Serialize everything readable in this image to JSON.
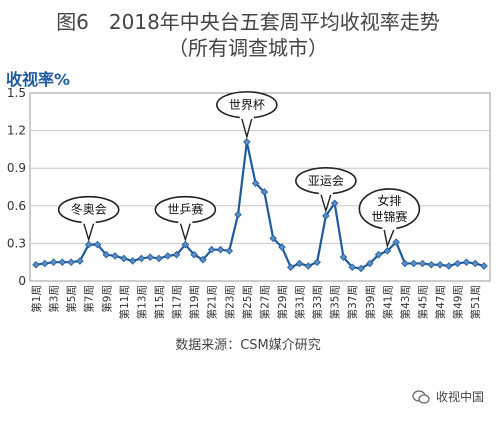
{
  "title_line1": "图6　2018年中央台五套周平均收视率走势",
  "title_line2": "（所有调查城市）",
  "source": "数据来源：CSM媒介研究",
  "watermark": "收视中国",
  "chart_data": {
    "type": "line",
    "ylabel": "收视率%",
    "ylim": [
      0,
      1.5
    ],
    "yticks": [
      "0",
      "0.3",
      "0.6",
      "0.9",
      "1.2",
      "1.5"
    ],
    "grid": true,
    "line_color": "#1f5b9c",
    "marker_color": "#5b8ec4",
    "x": [
      "第1周",
      "第2周",
      "第3周",
      "第4周",
      "第5周",
      "第6周",
      "第7周",
      "第8周",
      "第9周",
      "第10周",
      "第11周",
      "第12周",
      "第13周",
      "第14周",
      "第15周",
      "第16周",
      "第17周",
      "第18周",
      "第19周",
      "第20周",
      "第21周",
      "第22周",
      "第23周",
      "第24周",
      "第25周",
      "第26周",
      "第27周",
      "第28周",
      "第29周",
      "第30周",
      "第31周",
      "第32周",
      "第33周",
      "第34周",
      "第35周",
      "第36周",
      "第37周",
      "第38周",
      "第39周",
      "第40周",
      "第41周",
      "第42周",
      "第43周",
      "第44周",
      "第45周",
      "第46周",
      "第47周",
      "第48周",
      "第49周",
      "第50周",
      "第51周",
      "第52周"
    ],
    "x_tick_labels": [
      "第1周",
      "第3周",
      "第5周",
      "第7周",
      "第9周",
      "第11周",
      "第13周",
      "第15周",
      "第17周",
      "第19周",
      "第21周",
      "第23周",
      "第25周",
      "第27周",
      "第29周",
      "第31周",
      "第33周",
      "第35周",
      "第37周",
      "第39周",
      "第41周",
      "第43周",
      "第45周",
      "第47周",
      "第49周",
      "第51周"
    ],
    "y": [
      0.13,
      0.14,
      0.15,
      0.15,
      0.15,
      0.16,
      0.29,
      0.29,
      0.21,
      0.2,
      0.18,
      0.16,
      0.18,
      0.19,
      0.18,
      0.2,
      0.21,
      0.29,
      0.21,
      0.17,
      0.25,
      0.25,
      0.24,
      0.53,
      1.11,
      0.78,
      0.71,
      0.34,
      0.27,
      0.11,
      0.14,
      0.12,
      0.15,
      0.52,
      0.62,
      0.19,
      0.11,
      0.1,
      0.14,
      0.21,
      0.24,
      0.31,
      0.14,
      0.14,
      0.14,
      0.13,
      0.13,
      0.12,
      0.14,
      0.15,
      0.14,
      0.12
    ],
    "annotations": [
      {
        "text": "冬奥会",
        "week": 7
      },
      {
        "text": "世乒赛",
        "week": 18
      },
      {
        "text": "世界杯",
        "week": 25
      },
      {
        "text": "亚运会",
        "week": 34
      },
      {
        "text": "女排\n世锦赛",
        "week": 41
      }
    ]
  }
}
